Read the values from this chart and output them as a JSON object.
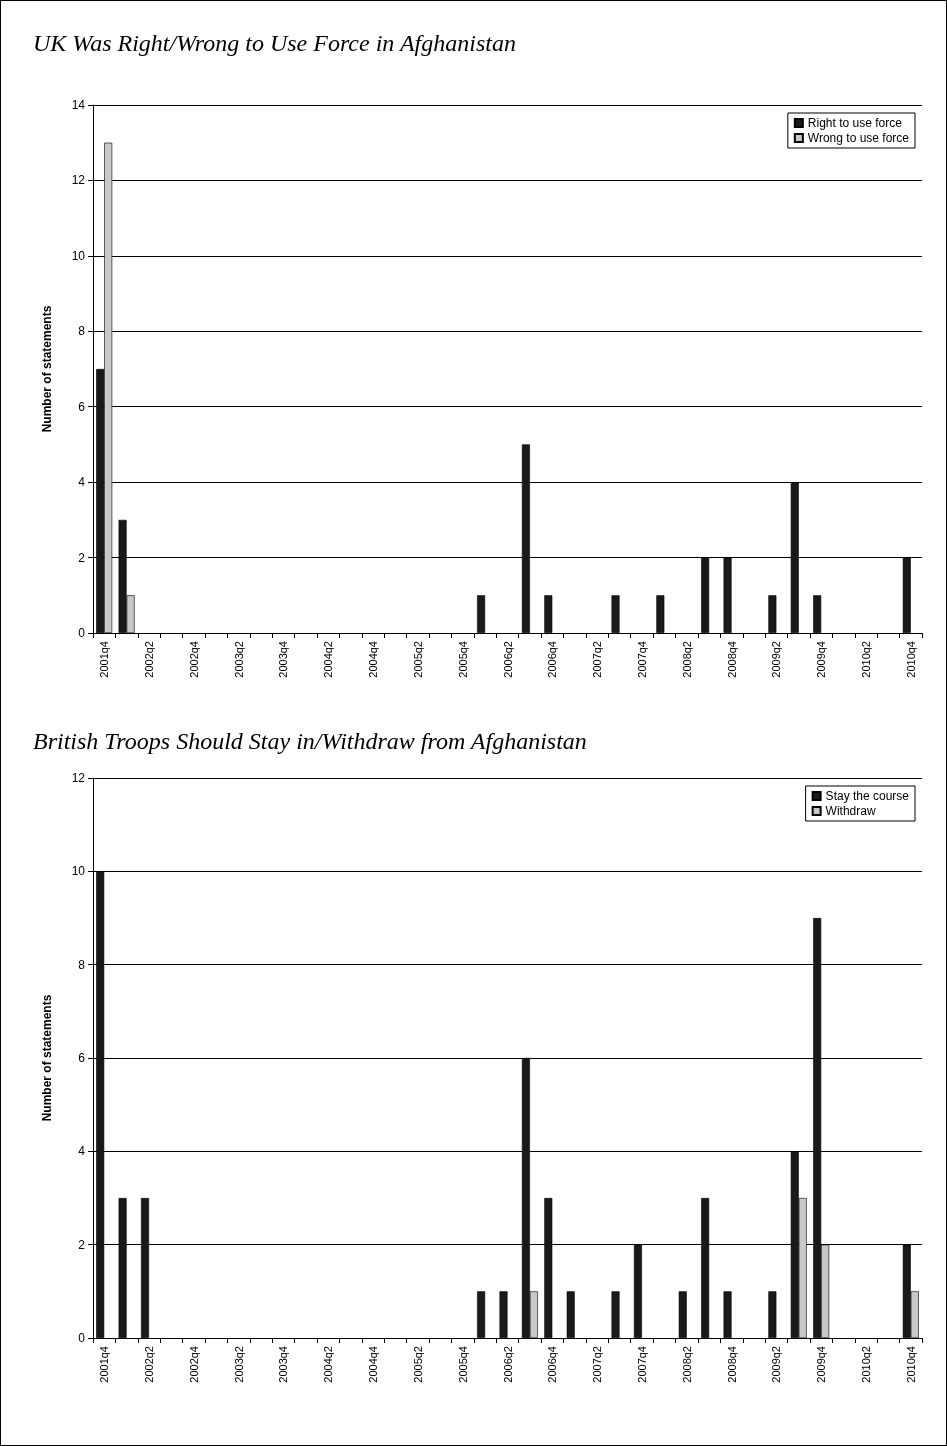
{
  "chart_data": [
    {
      "type": "bar",
      "title": "UK Was Right/Wrong to Use Force in Afghanistan",
      "ylabel": "Number of statements",
      "categories": [
        "2001q4",
        null,
        "2002q2",
        null,
        "2002q4",
        null,
        "2003q2",
        null,
        "2003q4",
        null,
        "2004q2",
        null,
        "2004q4",
        null,
        "2005q2",
        null,
        "2005q4",
        null,
        "2006q2",
        null,
        "2006q4",
        null,
        "2007q2",
        null,
        "2007q4",
        null,
        "2008q2",
        null,
        "2008q4",
        null,
        "2009q2",
        null,
        "2009q4",
        null,
        "2010q2",
        null,
        "2010q4"
      ],
      "series": [
        {
          "name": "Right to use force",
          "color": "#1a1a1a",
          "values": [
            7,
            3,
            0,
            0,
            0,
            0,
            0,
            0,
            0,
            0,
            0,
            0,
            0,
            0,
            0,
            0,
            0,
            1,
            0,
            5,
            1,
            0,
            0,
            1,
            0,
            1,
            0,
            2,
            2,
            0,
            1,
            4,
            1,
            0,
            0,
            0,
            2
          ]
        },
        {
          "name": "Wrong to use force",
          "color": "#c8c8c8",
          "values": [
            13,
            1,
            0,
            0,
            0,
            0,
            0,
            0,
            0,
            0,
            0,
            0,
            0,
            0,
            0,
            0,
            0,
            0,
            0,
            0,
            0,
            0,
            0,
            0,
            0,
            0,
            0,
            0,
            0,
            0,
            0,
            0,
            0,
            0,
            0,
            0,
            0
          ]
        }
      ],
      "ylim": [
        0,
        14
      ],
      "yticks": [
        0,
        2,
        4,
        6,
        8,
        10,
        12,
        14
      ],
      "grid": "y",
      "legend": "top right"
    },
    {
      "type": "bar",
      "title": "British Troops Should Stay in/Withdraw from Afghanistan",
      "ylabel": "Number of statements",
      "categories": [
        "2001q4",
        null,
        "2002q2",
        null,
        "2002q4",
        null,
        "2003q2",
        null,
        "2003q4",
        null,
        "2004q2",
        null,
        "2004q4",
        null,
        "2005q2",
        null,
        "2005q4",
        null,
        "2006q2",
        null,
        "2006q4",
        null,
        "2007q2",
        null,
        "2007q4",
        null,
        "2008q2",
        null,
        "2008q4",
        null,
        "2009q2",
        null,
        "2009q4",
        null,
        "2010q2",
        null,
        "2010q4"
      ],
      "series": [
        {
          "name": "Stay the course",
          "color": "#1a1a1a",
          "values": [
            10,
            3,
            3,
            0,
            0,
            0,
            0,
            0,
            0,
            0,
            0,
            0,
            0,
            0,
            0,
            0,
            0,
            1,
            1,
            6,
            3,
            1,
            0,
            1,
            2,
            0,
            1,
            3,
            1,
            0,
            1,
            4,
            9,
            0,
            0,
            0,
            2
          ]
        },
        {
          "name": "Withdraw",
          "color": "#c8c8c8",
          "values": [
            0,
            0,
            0,
            0,
            0,
            0,
            0,
            0,
            0,
            0,
            0,
            0,
            0,
            0,
            0,
            0,
            0,
            0,
            0,
            1,
            0,
            0,
            0,
            0,
            0,
            0,
            0,
            0,
            0,
            0,
            0,
            3,
            2,
            0,
            0,
            0,
            1
          ]
        }
      ],
      "ylim": [
        0,
        12
      ],
      "yticks": [
        0,
        2,
        4,
        6,
        8,
        10,
        12
      ],
      "grid": "y",
      "legend": "top right"
    }
  ]
}
